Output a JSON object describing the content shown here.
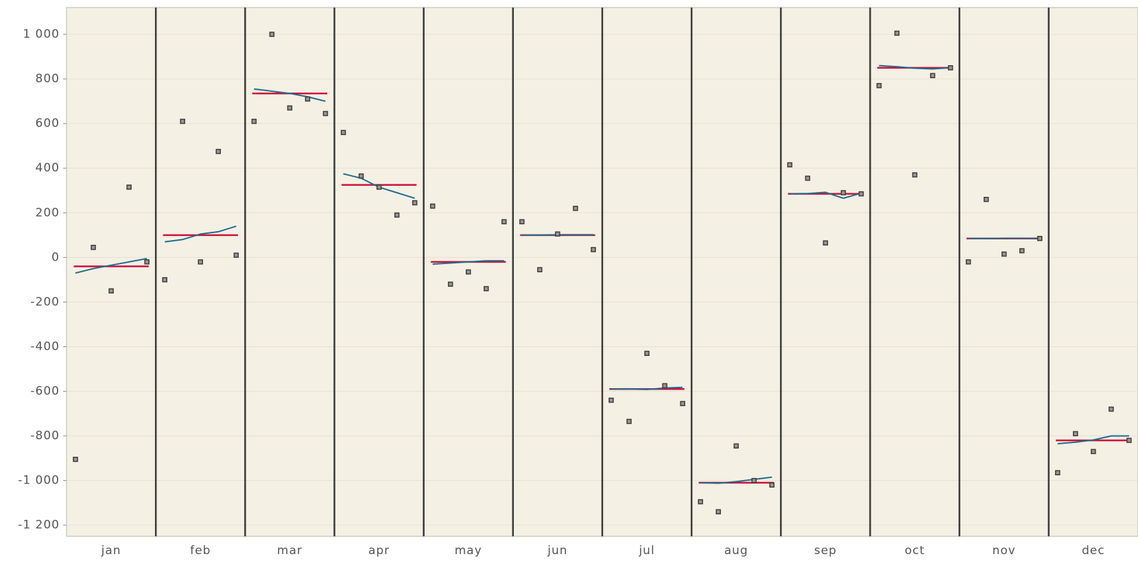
{
  "chart_data": {
    "type": "seasonal",
    "categories": [
      "jan",
      "feb",
      "mar",
      "apr",
      "may",
      "jun",
      "jul",
      "aug",
      "sep",
      "oct",
      "nov",
      "dec"
    ],
    "points": [
      [
        -905,
        45,
        -150,
        315,
        -20
      ],
      [
        -100,
        610,
        -20,
        475,
        10
      ],
      [
        610,
        1000,
        670,
        710,
        645
      ],
      [
        560,
        365,
        315,
        190,
        245
      ],
      [
        230,
        -120,
        -65,
        -140,
        160
      ],
      [
        160,
        -55,
        105,
        220,
        35
      ],
      [
        -640,
        -735,
        -430,
        -575,
        -655
      ],
      [
        -1095,
        -1140,
        -845,
        -1000,
        -1020
      ],
      [
        415,
        355,
        65,
        290,
        285
      ],
      [
        770,
        1005,
        370,
        815,
        850
      ],
      [
        -20,
        260,
        15,
        30,
        85
      ],
      [
        -965,
        -790,
        -870,
        -680,
        -820
      ]
    ],
    "means": [
      -40,
      100,
      735,
      325,
      -20,
      100,
      -590,
      -1010,
      285,
      850,
      85,
      -820
    ],
    "trends": [
      [
        -70,
        -50,
        -35,
        -20,
        -5
      ],
      [
        70,
        80,
        105,
        115,
        140
      ],
      [
        755,
        745,
        735,
        720,
        700
      ],
      [
        375,
        355,
        315,
        290,
        265
      ],
      [
        -30,
        -25,
        -20,
        -15,
        -15
      ],
      [
        100,
        100,
        102,
        102,
        102
      ],
      [
        -590,
        -590,
        -592,
        -585,
        -582
      ],
      [
        -1010,
        -1012,
        -1005,
        -995,
        -985
      ],
      [
        285,
        286,
        292,
        265,
        288
      ],
      [
        860,
        855,
        848,
        845,
        850
      ],
      [
        85,
        85,
        86,
        86,
        86
      ],
      [
        -835,
        -828,
        -818,
        -800,
        -800
      ]
    ],
    "point_color": "#3d3d3d",
    "mean_color": "#d0103a",
    "trend_color": "#1f6e8c",
    "ylim": [
      -1250,
      1120
    ],
    "yticks": [
      {
        "value": -1200,
        "label": "-1 200"
      },
      {
        "value": -1000,
        "label": "-1 000"
      },
      -800,
      -600,
      -400,
      -200,
      0,
      200,
      400,
      600,
      800,
      {
        "value": 1000,
        "label": "1 000"
      }
    ],
    "grid": true
  }
}
